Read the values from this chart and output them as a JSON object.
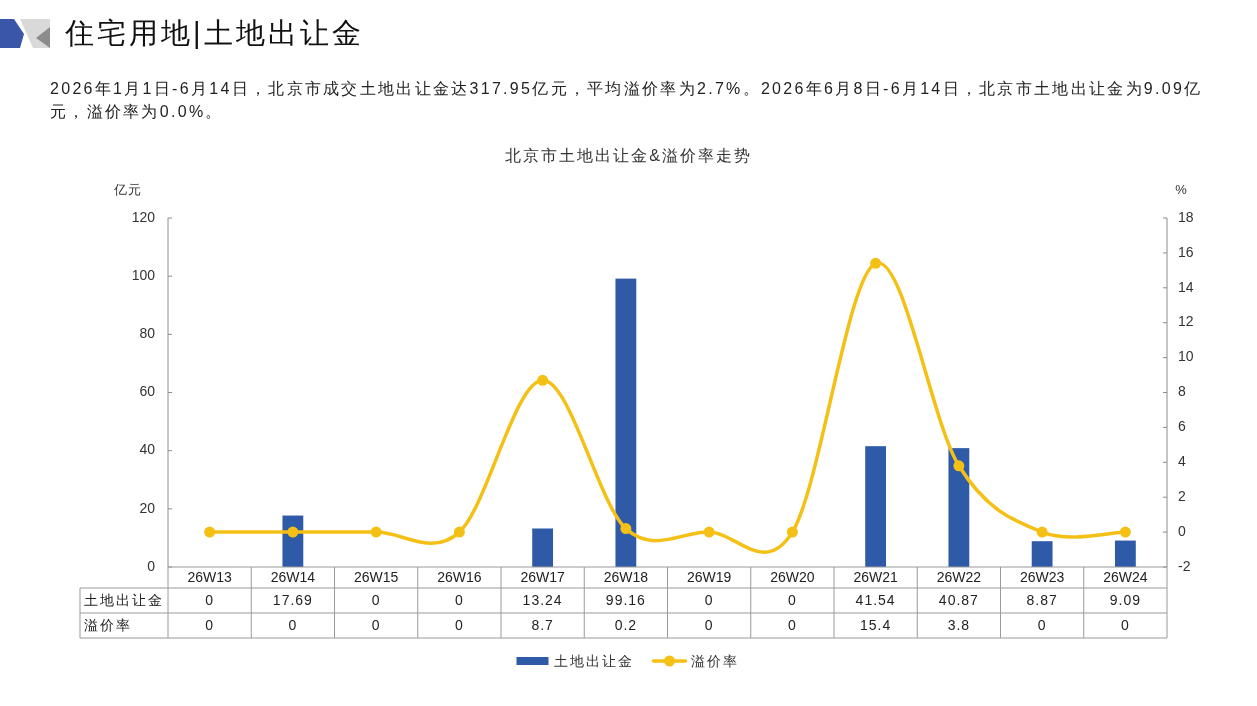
{
  "chart_data": {
    "type": "bar",
    "title": "北京市土地出让金&溢价率走势",
    "ylabel": "亿元",
    "y2label": "%",
    "annotations": [
      "住宅用地|土地出让金",
      "2026年1月1日-6月14日，北京市成交土地出让金达317.95亿元，平均溢价率为2.7%。2026年6月8日-6月14日，北京市土地出让金为9.09亿元，溢价率为0.0%。"
    ],
    "categories": [
      "26W13",
      "26W14",
      "26W15",
      "26W16",
      "26W17",
      "26W18",
      "26W19",
      "26W20",
      "26W21",
      "26W22",
      "26W23",
      "26W24"
    ],
    "series": [
      {
        "name": "土地出让金",
        "color": "#2e5aa7",
        "values": [
          0,
          17.69,
          0,
          0,
          13.24,
          99.16,
          0,
          0,
          41.54,
          40.87,
          8.87,
          9.09
        ]
      },
      {
        "name": "溢价率",
        "type": "line",
        "axis": "y2",
        "color": "#f5c015",
        "marker": "circle",
        "line_style": "solid",
        "values": [
          0,
          0,
          0,
          0,
          8.7,
          0.2,
          0,
          0,
          15.4,
          3.8,
          0,
          0
        ]
      }
    ],
    "ylim": [
      0,
      120
    ],
    "yticks": [
      0,
      20,
      40,
      60,
      80,
      100,
      120
    ],
    "y2lim": [
      -2,
      18
    ],
    "y2ticks": [
      -2,
      0,
      2,
      4,
      6,
      8,
      10,
      12,
      14,
      16,
      18
    ],
    "data_labels": true,
    "legend": "bottom"
  }
}
